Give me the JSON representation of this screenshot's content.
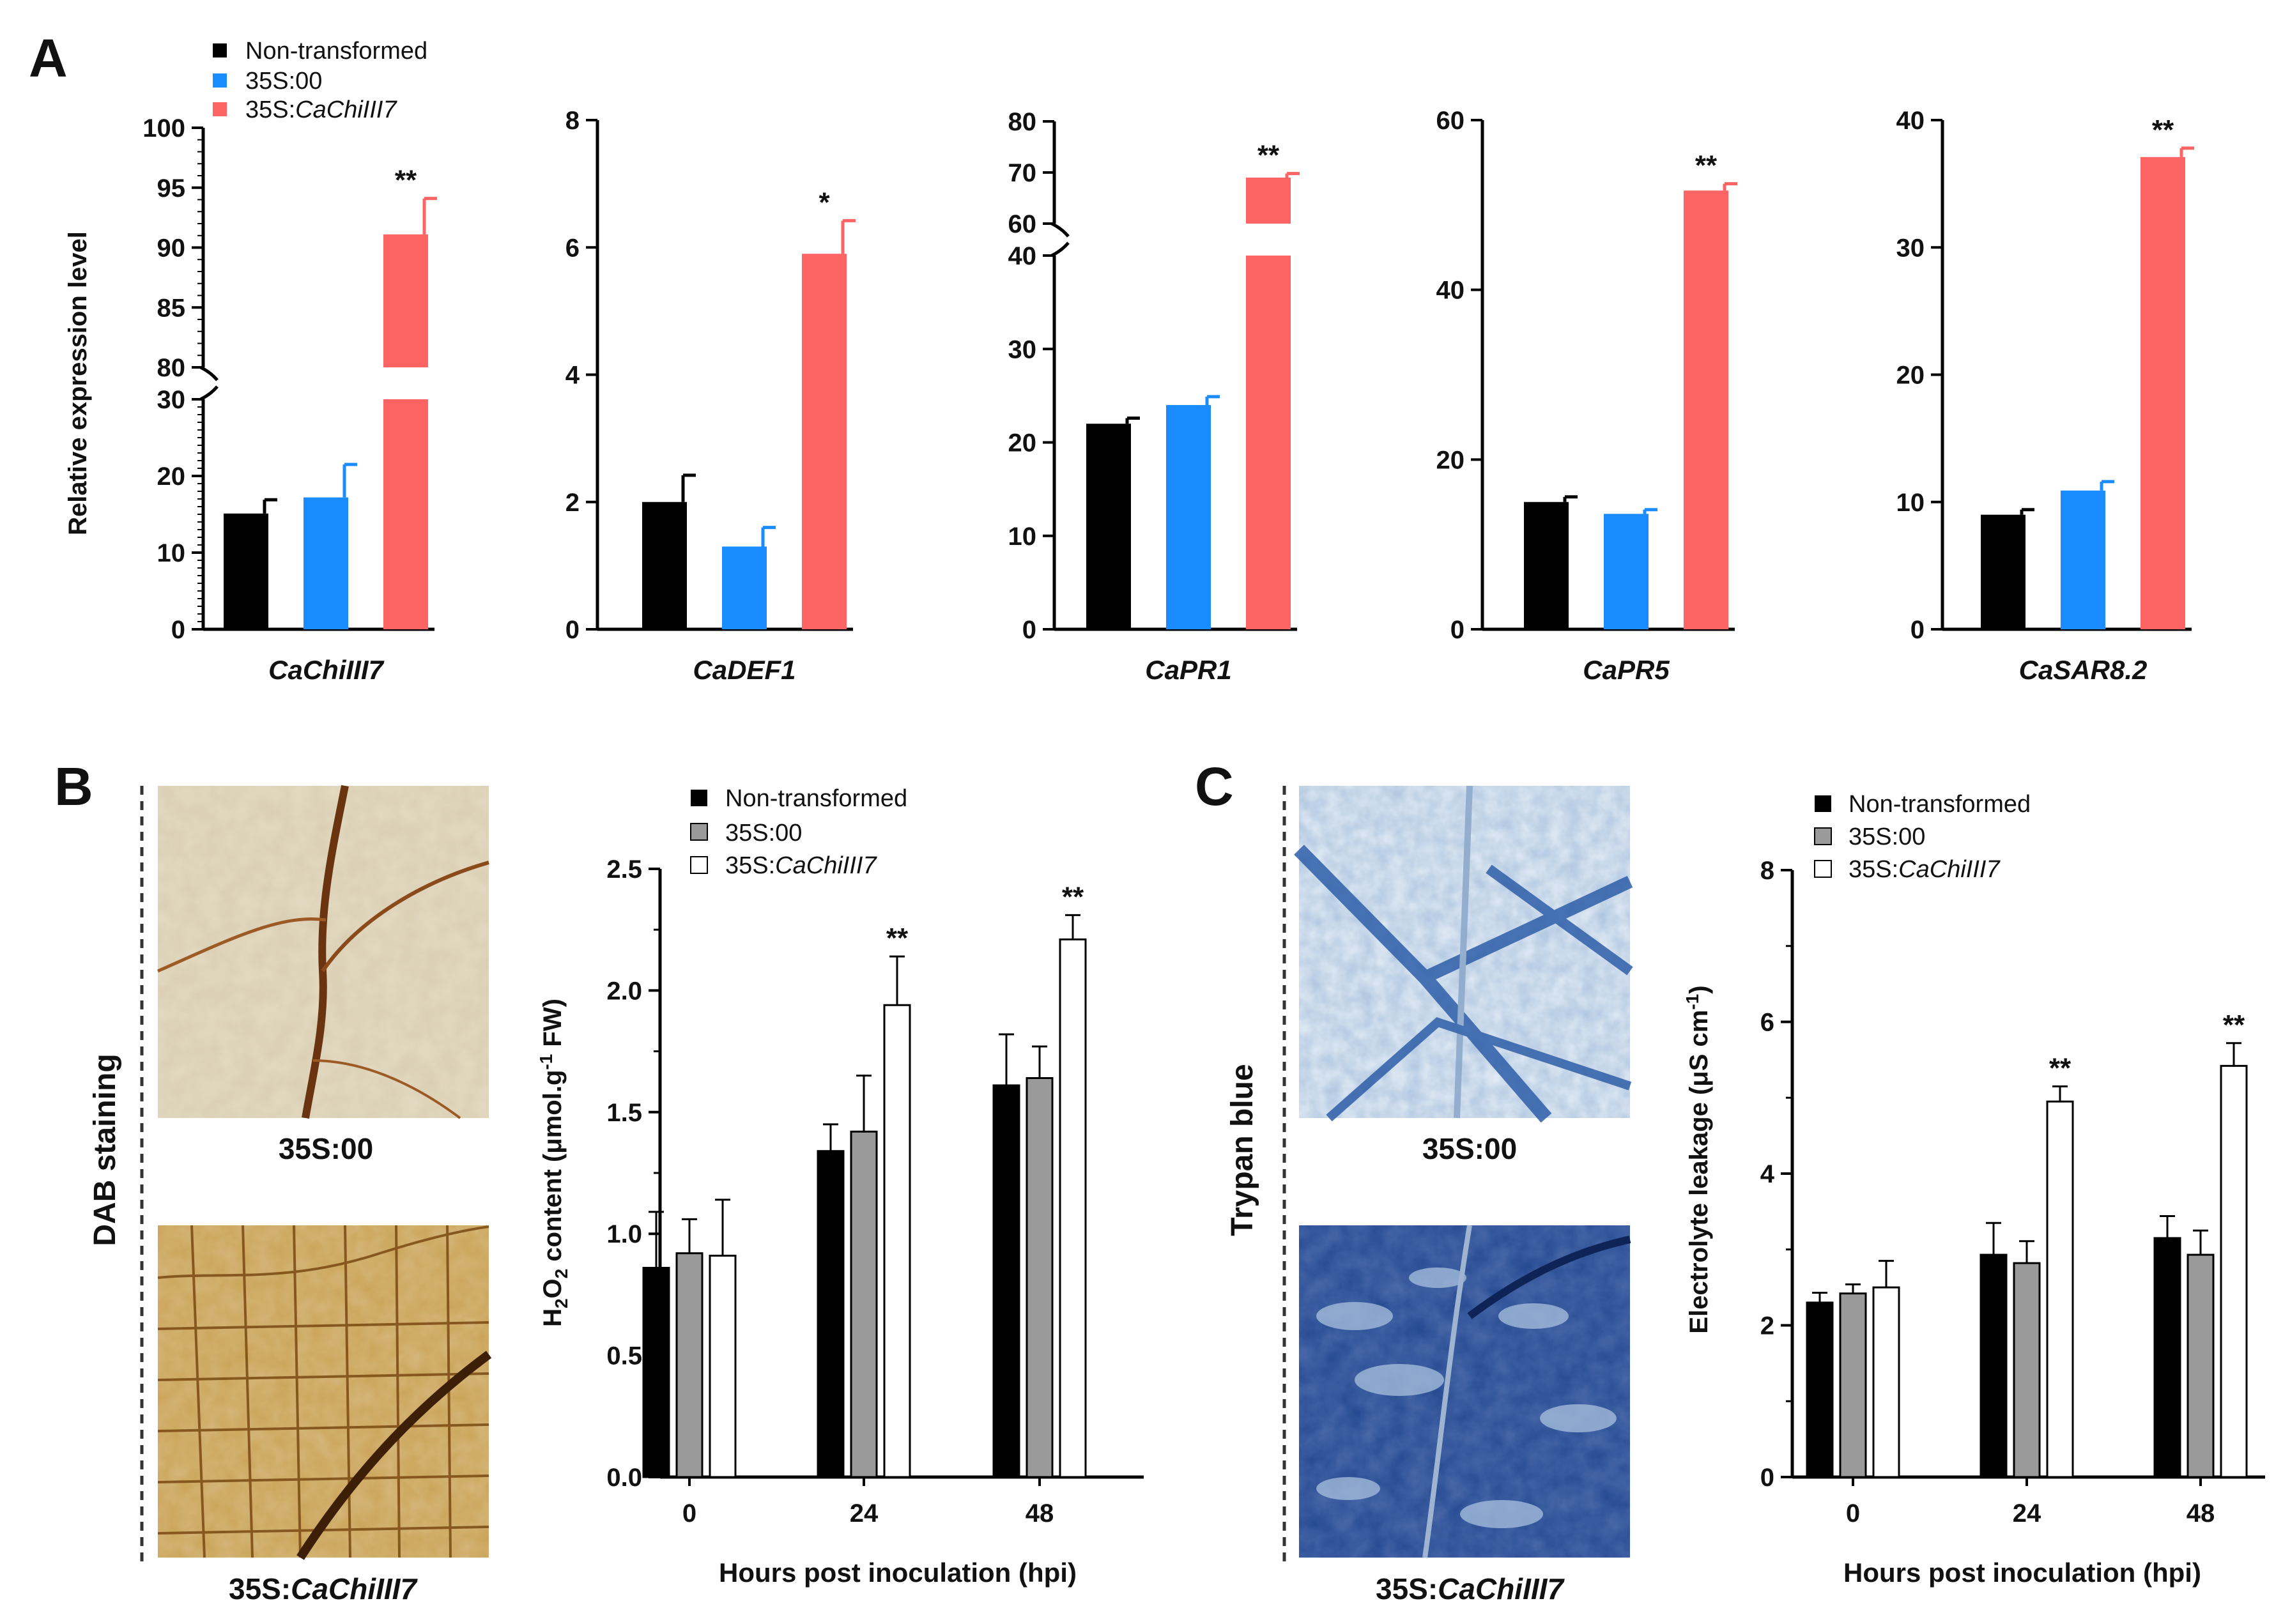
{
  "colors": {
    "non_transformed": "#000000",
    "vector": "#1a8cff",
    "overexp": "#ff6464",
    "grey": "#9a9a9a",
    "white": "#ffffff"
  },
  "panels": {
    "a": "A",
    "b": "B",
    "c": "C"
  },
  "legend_a": {
    "l1": "Non-transformed",
    "l2": "35S:00",
    "l3_prefix": "35S:",
    "l3_gene": "CaChiIII7"
  },
  "legend_b": {
    "l1": "Non-transformed",
    "l2": "35S:00",
    "l3_prefix": "35S:",
    "l3_gene": "CaChiIII7"
  },
  "legend_c": {
    "l1": "Non-transformed",
    "l2": "35S:00",
    "l3_prefix": "35S:",
    "l3_gene": "CaChiIII7"
  },
  "ylabel_a": "Relative expression level",
  "ylabel_b": {
    "pre": "H",
    "sub1": "2",
    "mid": "O",
    "sub2": "2",
    "post1": " content (μmol.g",
    "sup": "-1",
    "post2": " FW)"
  },
  "ylabel_c": {
    "pre": "Electrolyte leakage  (μS cm",
    "sup": "-1",
    "post": ")"
  },
  "xlabel_time": "Hours post inoculation (hpi)",
  "images": {
    "dab_label": "DAB staining",
    "trypan_label": "Trypan blue",
    "caption_top": "35S:00",
    "caption_bottom_prefix": "35S:",
    "caption_bottom_gene": "CaChiIII7"
  },
  "chart_data": [
    {
      "type": "bar",
      "title": "",
      "gene": "CaChiIII7",
      "categories": [
        "Non-transformed",
        "35S:00",
        "35S:CaChiIII7"
      ],
      "values": [
        15.1,
        17.2,
        91.1
      ],
      "errors": [
        1.8,
        4.3,
        3.0
      ],
      "significance": [
        "",
        "",
        "**"
      ],
      "axis_break": [
        30,
        80
      ],
      "ylim": [
        0,
        100
      ],
      "ylabel": "Relative expression level"
    },
    {
      "type": "bar",
      "title": "",
      "gene": "CaDEF1",
      "categories": [
        "Non-transformed",
        "35S:00",
        "35S:CaChiIII7"
      ],
      "values": [
        2.0,
        1.3,
        5.9
      ],
      "errors": [
        0.42,
        0.3,
        0.52
      ],
      "significance": [
        "",
        "",
        "*"
      ],
      "ylim": [
        0,
        8
      ]
    },
    {
      "type": "bar",
      "title": "",
      "gene": "CaPR1",
      "categories": [
        "Non-transformed",
        "35S:00",
        "35S:CaChiIII7"
      ],
      "values": [
        22.0,
        24.0,
        69.0
      ],
      "errors": [
        0.6,
        0.9,
        0.8
      ],
      "significance": [
        "",
        "",
        "**"
      ],
      "axis_break": [
        40,
        60
      ],
      "ylim": [
        0,
        80
      ]
    },
    {
      "type": "bar",
      "title": "",
      "gene": "CaPR5",
      "categories": [
        "Non-transformed",
        "35S:00",
        "35S:CaChiIII7"
      ],
      "values": [
        15.0,
        13.6,
        51.7
      ],
      "errors": [
        0.6,
        0.5,
        0.8
      ],
      "significance": [
        "",
        "",
        "**"
      ],
      "ylim": [
        0,
        60
      ]
    },
    {
      "type": "bar",
      "title": "",
      "gene": "CaSAR8.2",
      "categories": [
        "Non-transformed",
        "35S:00",
        "35S:CaChiIII7"
      ],
      "values": [
        9.0,
        10.9,
        37.1
      ],
      "errors": [
        0.4,
        0.7,
        0.7
      ],
      "significance": [
        "",
        "",
        "**"
      ],
      "ylim": [
        0,
        40
      ]
    },
    {
      "type": "bar",
      "title": "H2O2 content",
      "categories": [
        "0",
        "24",
        "48"
      ],
      "series": [
        {
          "name": "Non-transformed",
          "values": [
            0.86,
            1.34,
            1.61
          ],
          "errors": [
            0.23,
            0.11,
            0.21
          ]
        },
        {
          "name": "35S:00",
          "values": [
            0.92,
            1.42,
            1.64
          ],
          "errors": [
            0.14,
            0.23,
            0.13
          ]
        },
        {
          "name": "35S:CaChiIII7",
          "values": [
            0.91,
            1.94,
            2.21
          ],
          "errors": [
            0.23,
            0.2,
            0.1
          ]
        }
      ],
      "significance": [
        "",
        "**",
        "**"
      ],
      "ylim": [
        0,
        2.5
      ],
      "yticks": [
        "0.0",
        "0.5",
        "1.0",
        "1.5",
        "2.0",
        "2.5"
      ],
      "xlabel": "Hours post inoculation (hpi)"
    },
    {
      "type": "bar",
      "title": "Electrolyte leakage",
      "categories": [
        "0",
        "24",
        "48"
      ],
      "series": [
        {
          "name": "Non-transformed",
          "values": [
            2.3,
            2.93,
            3.15
          ],
          "errors": [
            0.13,
            0.42,
            0.29
          ]
        },
        {
          "name": "35S:00",
          "values": [
            2.42,
            2.82,
            2.93
          ],
          "errors": [
            0.12,
            0.29,
            0.32
          ]
        },
        {
          "name": "35S:CaChiIII7",
          "values": [
            2.5,
            4.95,
            5.42
          ],
          "errors": [
            0.35,
            0.2,
            0.3
          ]
        }
      ],
      "significance": [
        "",
        "**",
        "**"
      ],
      "ylim": [
        0,
        8
      ],
      "yticks": [
        "0",
        "2",
        "4",
        "6",
        "8"
      ],
      "xlabel": "Hours post inoculation (hpi)"
    }
  ]
}
